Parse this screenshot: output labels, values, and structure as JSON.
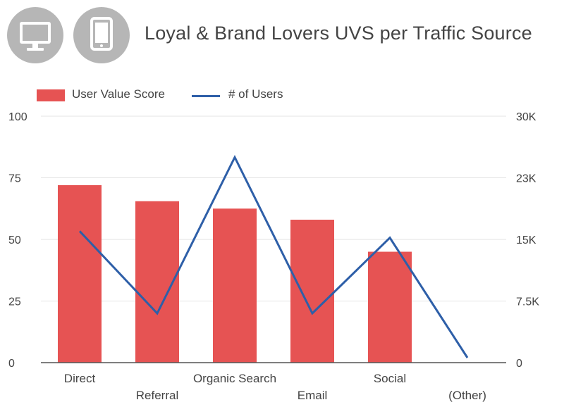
{
  "header": {
    "title": "Loyal & Brand Lovers UVS per Traffic Source",
    "icons": [
      "desktop-monitor-icon",
      "tablet-icon"
    ],
    "icon_background": "#b6b6b6"
  },
  "legend": {
    "bar_label": "User Value Score",
    "line_label": "# of Users"
  },
  "colors": {
    "bar": "#e65353",
    "line": "#2e5fa8",
    "grid": "#e3e3e3",
    "axis": "#555555",
    "text": "#444444"
  },
  "chart_data": {
    "type": "bar",
    "title": "Loyal & Brand Lovers UVS per Traffic Source",
    "categories": [
      "Direct",
      "Referral",
      "Organic Search",
      "Email",
      "Social",
      "(Other)"
    ],
    "series": [
      {
        "name": "User Value Score",
        "type": "bar",
        "axis": "left",
        "values": [
          72,
          65.5,
          62.5,
          58,
          45,
          0
        ]
      },
      {
        "name": "# of Users",
        "type": "line",
        "axis": "right",
        "values": [
          16000,
          6000,
          25000,
          6000,
          15200,
          600
        ]
      }
    ],
    "y_left": {
      "range": [
        0,
        100
      ],
      "ticks": [
        0,
        25,
        50,
        75,
        100
      ],
      "tick_labels": [
        "0",
        "25",
        "50",
        "75",
        "100"
      ]
    },
    "y_right": {
      "range": [
        0,
        30000
      ],
      "ticks": [
        0,
        7500,
        15000,
        22500,
        30000
      ],
      "tick_labels": [
        "0",
        "7.5K",
        "15K",
        "23K",
        "30K"
      ]
    },
    "grid": true,
    "legend_position": "top-left"
  }
}
